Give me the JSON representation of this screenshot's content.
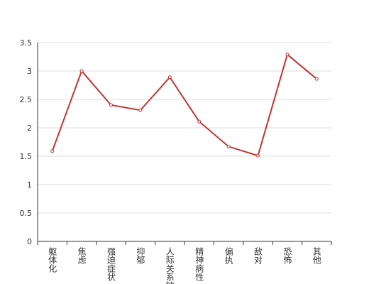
{
  "chart_data": {
    "type": "line",
    "categories": [
      "躯体化",
      "焦虑",
      "强迫症状",
      "抑郁",
      "人际关系敏感",
      "精神病性",
      "偏执",
      "敌对",
      "恐怖",
      "其他"
    ],
    "values": [
      1.59,
      3.0,
      2.4,
      2.31,
      2.89,
      2.11,
      1.67,
      1.51,
      3.29,
      2.86
    ],
    "color": "#c23531",
    "ylim": [
      0,
      3.5
    ],
    "yticks": [
      0,
      0.5,
      1,
      1.5,
      2,
      2.5,
      3,
      3.5
    ],
    "grid": true
  }
}
